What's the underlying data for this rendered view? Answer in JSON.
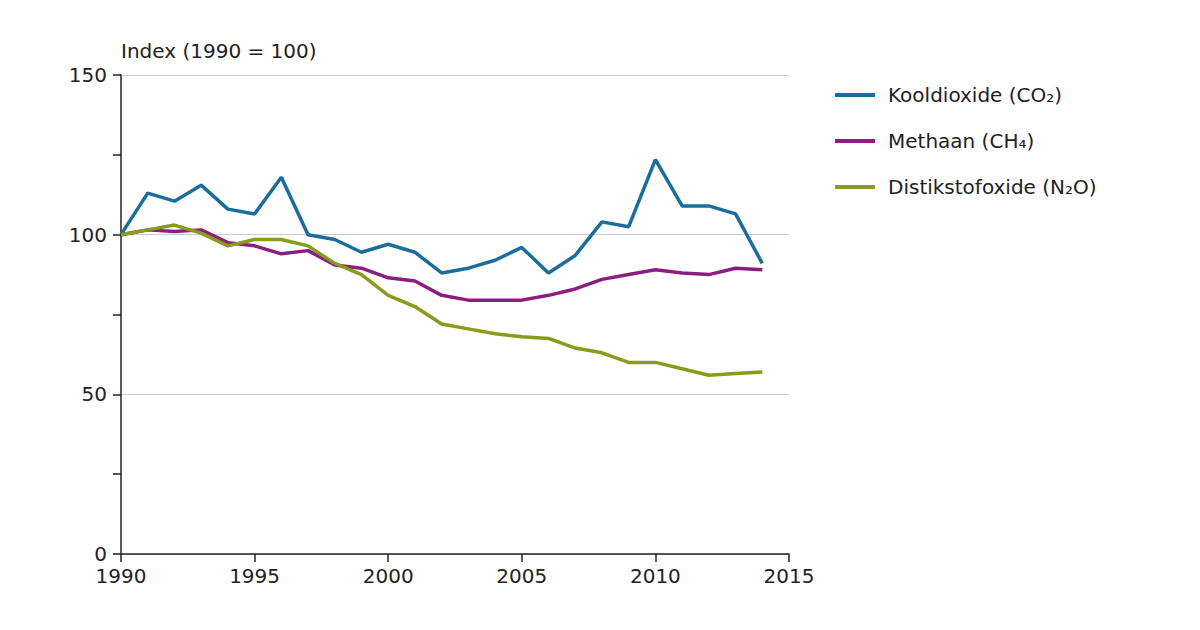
{
  "chart_data": {
    "type": "line",
    "ylabel": "Index (1990 = 100)",
    "x": [
      1990,
      1991,
      1992,
      1993,
      1994,
      1995,
      1996,
      1997,
      1998,
      1999,
      2000,
      2001,
      2002,
      2003,
      2004,
      2005,
      2006,
      2007,
      2008,
      2009,
      2010,
      2011,
      2012,
      2013,
      2014
    ],
    "series": [
      {
        "name": "Kooldioxide (CO₂)",
        "color": "#1b6e9c",
        "values": [
          100,
          113,
          110.5,
          115.5,
          108,
          106.5,
          118,
          100,
          98.5,
          94.5,
          97,
          94.5,
          88,
          89.5,
          92,
          96,
          88,
          93.5,
          104,
          102.5,
          123.5,
          109,
          109,
          106.5,
          91
        ]
      },
      {
        "name": "Methaan (CH₄)",
        "color": "#8b1f7f",
        "values": [
          100,
          101.5,
          101,
          101.5,
          97.5,
          96.5,
          94,
          95,
          90.5,
          89.5,
          86.5,
          85.5,
          81,
          79.5,
          79.5,
          79.5,
          81,
          83,
          86,
          87.5,
          89,
          88,
          87.5,
          89.5,
          89
        ]
      },
      {
        "name": "Distikstofoxide (N₂O)",
        "color": "#8a9a1c",
        "values": [
          100,
          101.5,
          103,
          100.5,
          96.5,
          98.5,
          98.5,
          96.5,
          91,
          87.5,
          81,
          77.5,
          72,
          70.5,
          69,
          68,
          67.5,
          64.5,
          63,
          60,
          60,
          58,
          56,
          56.5,
          57
        ]
      }
    ],
    "xlim": [
      1990,
      2015
    ],
    "xticks": [
      1990,
      1995,
      2000,
      2005,
      2010,
      2015
    ],
    "ylim": [
      0,
      150
    ],
    "yticks": [
      0,
      50,
      100,
      150
    ],
    "grid": true,
    "legend": "right"
  }
}
